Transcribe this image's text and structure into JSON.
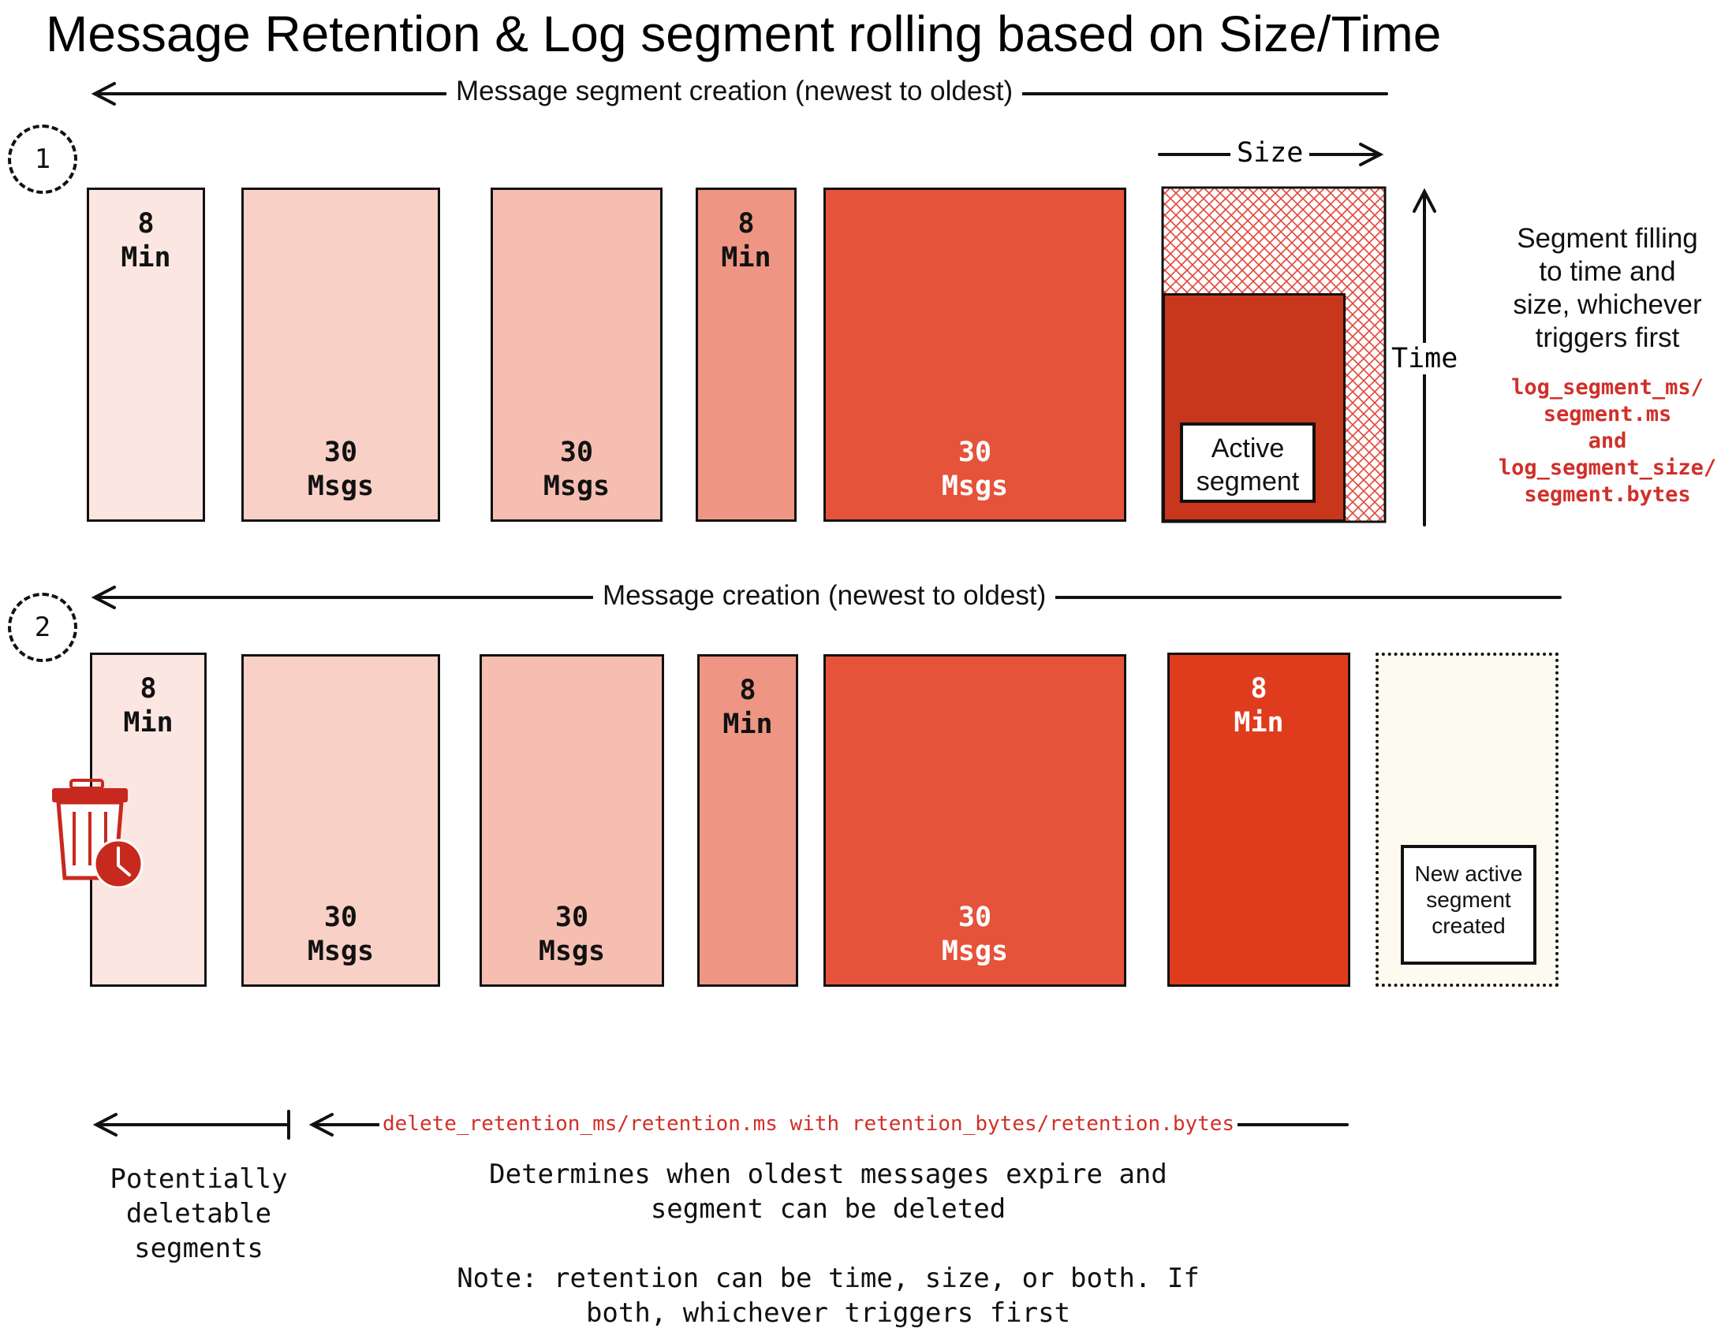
{
  "title": "Message Retention & Log segment rolling based on Size/Time",
  "row1": {
    "number": "1",
    "arrow_label": "Message segment creation (newest to oldest)",
    "size_label": "Size",
    "time_label": "Time",
    "active_segment_label": [
      "Active",
      "segment"
    ],
    "segments": [
      {
        "lines": [
          "8",
          "Min"
        ],
        "color": "#fbe6e1"
      },
      {
        "lines": [
          "30",
          "Msgs"
        ],
        "color": "#f8d0c6"
      },
      {
        "lines": [
          "30",
          "Msgs"
        ],
        "color": "#f5beb1"
      },
      {
        "lines": [
          "8",
          "Min"
        ],
        "color": "#ee9683"
      },
      {
        "lines": [
          "30",
          "Msgs"
        ],
        "color": "#e5533a"
      }
    ],
    "active_color": "#c8371b",
    "hatch_color": "#e0453a",
    "side_text": [
      "Segment filling",
      "to time and",
      "size, whichever",
      "triggers first"
    ],
    "side_code": [
      "log_segment_ms/",
      "segment.ms",
      "and",
      "log_segment_size/",
      "segment.bytes"
    ]
  },
  "row2": {
    "number": "2",
    "arrow_label": "Message creation (newest to oldest)",
    "segments": [
      {
        "lines": [
          "8",
          "Min"
        ],
        "color": "#fbe6e1"
      },
      {
        "lines": [
          "30",
          "Msgs"
        ],
        "color": "#f8d0c6"
      },
      {
        "lines": [
          "30",
          "Msgs"
        ],
        "color": "#f5beb1"
      },
      {
        "lines": [
          "8",
          "Min"
        ],
        "color": "#ee9683"
      },
      {
        "lines": [
          "30",
          "Msgs"
        ],
        "color": "#e5533a"
      },
      {
        "lines": [
          "8",
          "Min"
        ],
        "color": "#df3c1d"
      }
    ],
    "new_segment_label": [
      "New active",
      "segment",
      "created"
    ],
    "new_segment_color": "#fdfbf0",
    "trash_color": "#c8291f"
  },
  "bottom": {
    "retention_code": "delete_retention_ms/retention.ms with retention_bytes/retention.bytes",
    "deletable_text": [
      "Potentially",
      "deletable",
      "segments"
    ],
    "determines_text": [
      "Determines when oldest messages expire and",
      "segment can be deleted"
    ],
    "note_text": [
      "Note: retention can be time, size, or both. If",
      "both, whichever triggers first"
    ]
  }
}
